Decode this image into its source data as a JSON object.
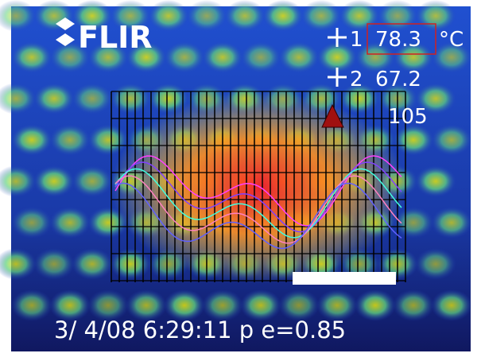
{
  "logo": "FLIR",
  "spots": [
    {
      "label": "1",
      "value": "78.3"
    },
    {
      "label": "2",
      "value": "67.2"
    }
  ],
  "unit": "°C",
  "scale_max": "105",
  "status": "3/ 4/08  6:29:11 p e=0.85"
}
